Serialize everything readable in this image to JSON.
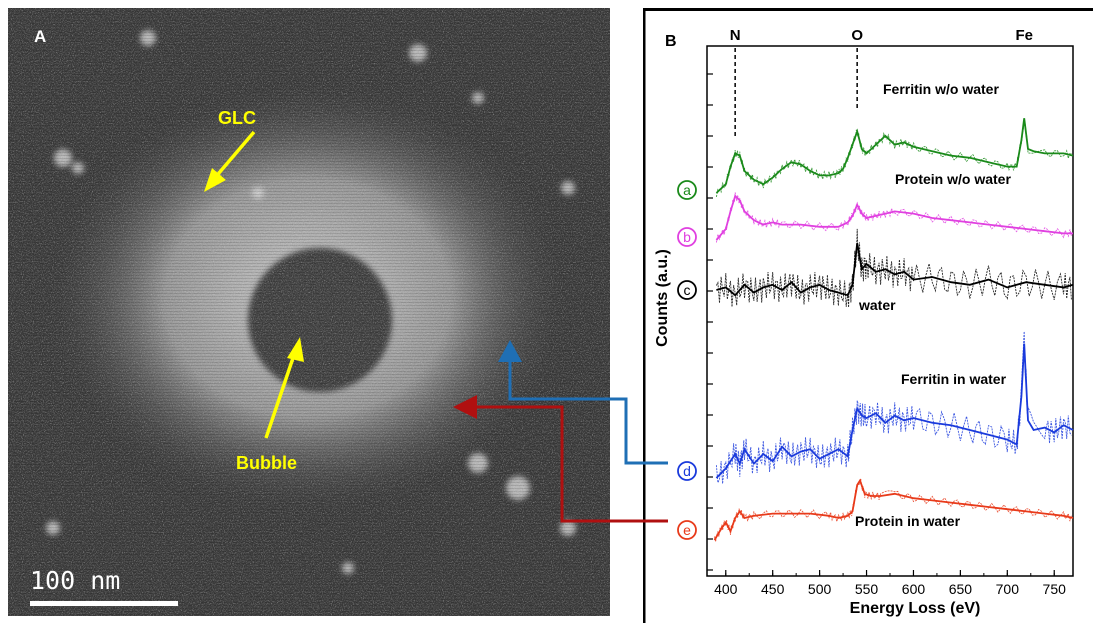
{
  "panel_a": {
    "letter": "A",
    "glc_label": "GLC",
    "bubble_label": "Bubble",
    "scale_bar_label": "100 nm"
  },
  "chart_data": {
    "type": "line",
    "panel_letter": "B",
    "xlabel": "Energy Loss (eV)",
    "ylabel": "Counts (a.u.)",
    "xlim": [
      380,
      770
    ],
    "x_ticks": [
      400,
      450,
      500,
      550,
      600,
      650,
      700,
      750
    ],
    "edges": [
      {
        "label": "N",
        "x": 410
      },
      {
        "label": "O",
        "x": 540
      },
      {
        "label": "Fe",
        "x": 718
      }
    ],
    "series": [
      {
        "marker": "a",
        "name": "Ferritin w/o water",
        "color": "#1a8a1a",
        "x": [
          390,
          400,
          405,
          410,
          415,
          420,
          430,
          440,
          450,
          460,
          470,
          480,
          490,
          500,
          510,
          520,
          525,
          530,
          535,
          540,
          545,
          550,
          560,
          570,
          580,
          590,
          600,
          620,
          640,
          660,
          680,
          700,
          710,
          715,
          718,
          722,
          728,
          740,
          760,
          770
        ],
        "y": [
          9.2,
          9.6,
          10.4,
          11.0,
          10.9,
          10.2,
          9.8,
          9.6,
          9.9,
          10.3,
          10.6,
          10.5,
          10.2,
          10.0,
          10.0,
          10.1,
          10.3,
          10.8,
          11.4,
          12.0,
          11.2,
          11.0,
          11.4,
          11.8,
          11.4,
          11.5,
          11.3,
          11.1,
          10.9,
          10.8,
          10.6,
          10.4,
          10.4,
          11.6,
          12.6,
          11.2,
          11.1,
          11.0,
          11.0,
          10.9
        ]
      },
      {
        "marker": "b",
        "name": "Protein w/o water",
        "color": "#e040e0",
        "x": [
          390,
          400,
          405,
          410,
          415,
          420,
          430,
          440,
          450,
          460,
          480,
          500,
          520,
          530,
          535,
          540,
          545,
          550,
          560,
          570,
          580,
          600,
          620,
          640,
          660,
          680,
          700,
          720,
          740,
          760,
          770
        ],
        "y": [
          7.3,
          7.8,
          8.6,
          9.3,
          9.1,
          8.6,
          8.2,
          8.0,
          8.1,
          8.0,
          8.0,
          7.9,
          7.9,
          8.1,
          8.4,
          8.9,
          8.5,
          8.3,
          8.4,
          8.5,
          8.6,
          8.5,
          8.3,
          8.2,
          8.1,
          8.0,
          7.9,
          7.8,
          7.7,
          7.6,
          7.6
        ]
      },
      {
        "marker": "c",
        "name": "water",
        "color": "#000000",
        "x": [
          390,
          400,
          410,
          420,
          430,
          440,
          450,
          460,
          470,
          480,
          490,
          500,
          510,
          520,
          530,
          535,
          540,
          545,
          550,
          560,
          570,
          580,
          590,
          600,
          620,
          640,
          660,
          680,
          700,
          720,
          740,
          760,
          770
        ],
        "y": [
          5.8,
          5.9,
          5.6,
          6.0,
          5.7,
          5.9,
          6.0,
          5.8,
          6.1,
          5.7,
          5.9,
          6.0,
          5.8,
          5.7,
          5.6,
          6.0,
          7.6,
          6.6,
          6.8,
          6.5,
          6.6,
          6.4,
          6.5,
          6.2,
          6.3,
          6.1,
          6.0,
          6.2,
          5.9,
          6.1,
          6.0,
          5.9,
          6.0
        ]
      },
      {
        "marker": "d",
        "name": "Ferritin in water",
        "color": "#1a3adc",
        "x": [
          390,
          400,
          410,
          415,
          420,
          430,
          440,
          450,
          460,
          470,
          480,
          490,
          500,
          510,
          520,
          530,
          535,
          540,
          545,
          550,
          560,
          570,
          580,
          590,
          600,
          620,
          640,
          660,
          680,
          700,
          710,
          715,
          718,
          722,
          728,
          740,
          750,
          760,
          770
        ],
        "y": [
          0.6,
          1.0,
          1.6,
          1.2,
          1.8,
          1.2,
          1.6,
          1.3,
          1.9,
          1.5,
          1.7,
          1.8,
          1.4,
          1.6,
          1.8,
          1.5,
          2.6,
          3.5,
          3.2,
          3.1,
          3.3,
          2.9,
          3.2,
          3.0,
          3.1,
          2.9,
          2.8,
          2.6,
          2.4,
          2.2,
          2.0,
          4.0,
          6.2,
          3.0,
          2.6,
          2.7,
          2.5,
          2.8,
          2.6
        ]
      },
      {
        "marker": "e",
        "name": "Protein in water",
        "color": "#e83a1a",
        "x": [
          388,
          395,
          400,
          405,
          410,
          415,
          420,
          430,
          450,
          470,
          490,
          510,
          520,
          530,
          535,
          540,
          543,
          548,
          555,
          565,
          580,
          600,
          620,
          640,
          660,
          680,
          700,
          720,
          740,
          760,
          770
        ],
        "y": [
          -0.5,
          0.0,
          0.3,
          -0.1,
          0.5,
          0.8,
          0.5,
          0.6,
          0.7,
          0.7,
          0.7,
          0.6,
          0.5,
          0.6,
          0.8,
          2.0,
          2.2,
          1.6,
          1.5,
          1.5,
          1.6,
          1.4,
          1.3,
          1.2,
          1.1,
          1.0,
          0.9,
          0.8,
          0.7,
          0.6,
          0.5
        ]
      }
    ],
    "annotation_arrows": [
      {
        "marker": "d",
        "color": "#1f6fb5"
      },
      {
        "marker": "e",
        "color": "#b01010"
      }
    ]
  }
}
